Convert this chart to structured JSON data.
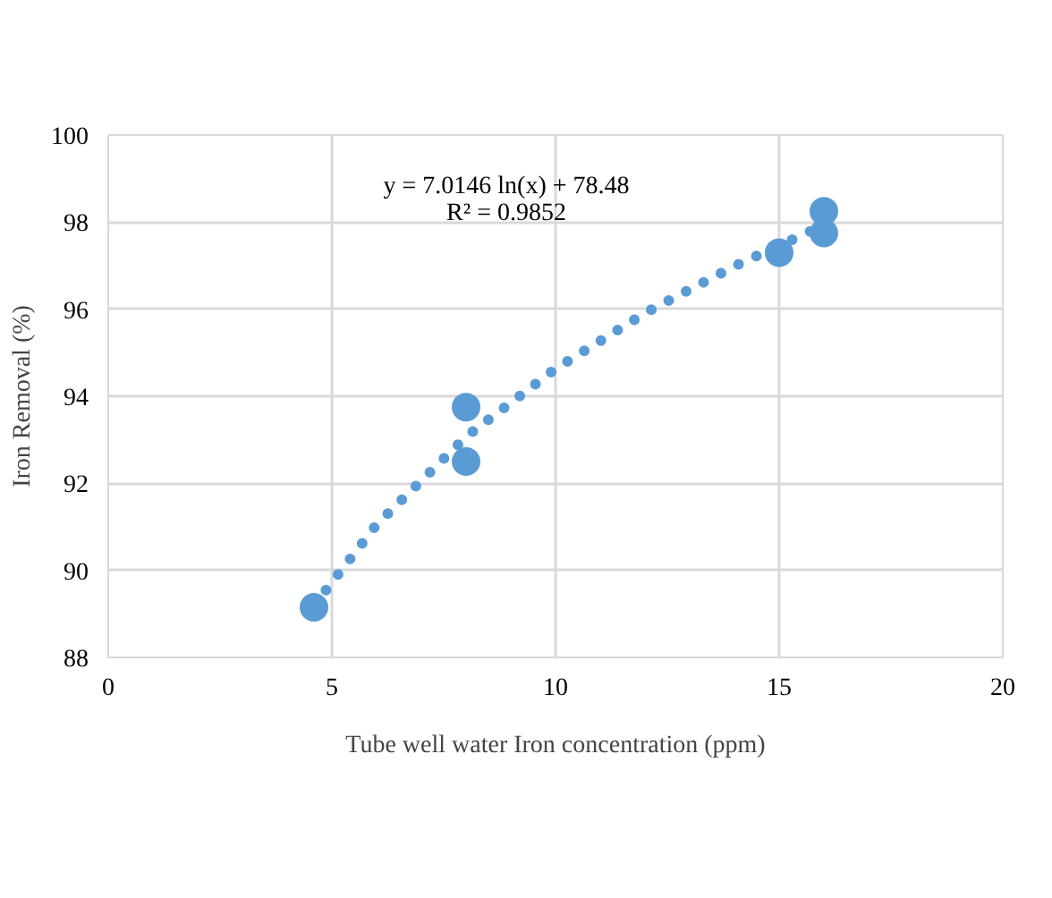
{
  "chart_data": {
    "type": "scatter",
    "xlabel": "Tube well water Iron concentration (ppm)",
    "ylabel": "Iron Removal (%)",
    "annotations": [
      "y = 7.0146 ln(x) + 78.48",
      "R² = 0.9852"
    ],
    "series": [
      {
        "color": "#5b9bd5",
        "marker": "circle",
        "x": [
          4.6,
          8,
          8,
          15,
          16,
          16
        ],
        "values": [
          89.15,
          93.75,
          92.5,
          97.3,
          98.25,
          97.75
        ]
      },
      {
        "type": "line",
        "color": "#5b9bd5",
        "line_style": "dotted",
        "x": [
          4.6,
          6,
          8,
          10,
          12,
          14,
          16
        ],
        "values": [
          89.19,
          91.05,
          93.07,
          94.63,
          95.91,
          96.99,
          97.93
        ]
      }
    ],
    "xlim": [
      0,
      20
    ],
    "xticks": [
      0,
      5,
      10,
      15,
      20
    ],
    "ylim": [
      88,
      100
    ],
    "yticks": [
      88,
      90,
      92,
      94,
      96,
      98,
      100
    ],
    "grid": true
  }
}
